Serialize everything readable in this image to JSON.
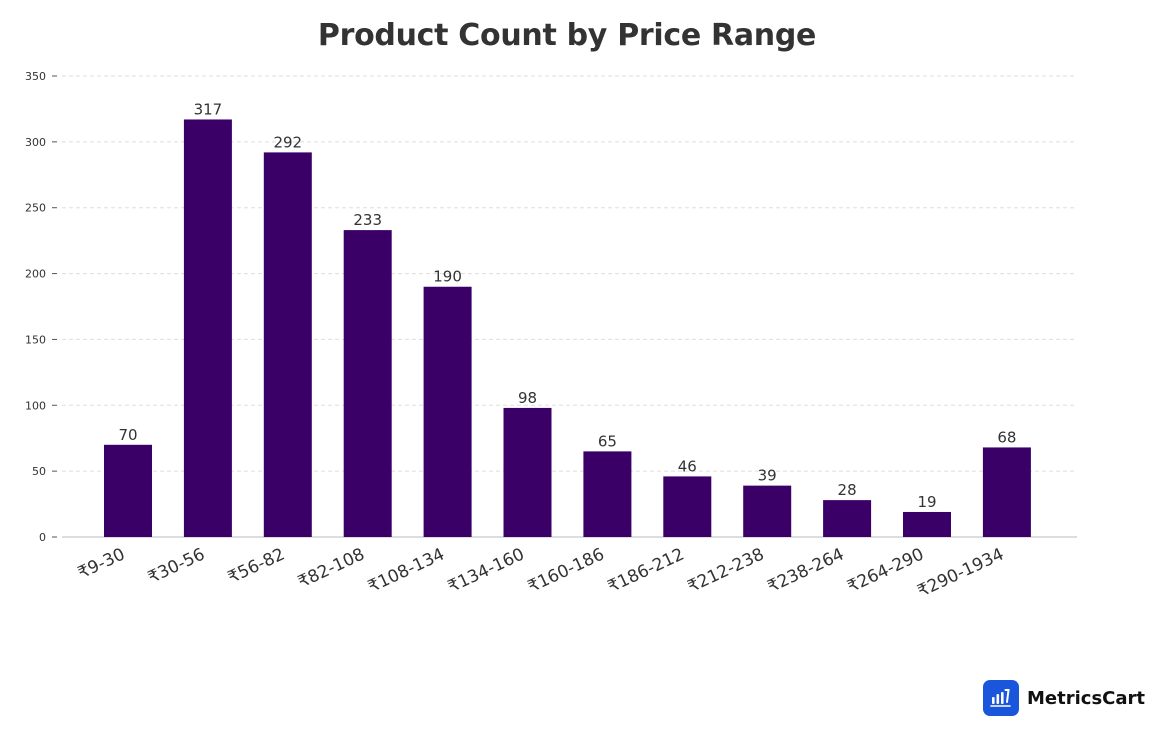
{
  "chart_data": {
    "type": "bar",
    "title": "Product Count by Price Range",
    "xlabel": "",
    "ylabel": "",
    "categories": [
      "₹9-30",
      "₹30-56",
      "₹56-82",
      "₹82-108",
      "₹108-134",
      "₹134-160",
      "₹160-186",
      "₹186-212",
      "₹212-238",
      "₹238-264",
      "₹264-290",
      "₹290-1934"
    ],
    "values": [
      70,
      317,
      292,
      233,
      190,
      98,
      65,
      46,
      39,
      28,
      19,
      68
    ],
    "ylim": [
      0,
      350
    ],
    "yticks": [
      0,
      50,
      100,
      150,
      200,
      250,
      300,
      350
    ],
    "grid": "horizontal dashed",
    "bar_color": "#3a0068",
    "legend": "none"
  },
  "brand": {
    "name": "MetricsCart",
    "icon": "bar-chart-icon",
    "color": "#1a56db"
  }
}
